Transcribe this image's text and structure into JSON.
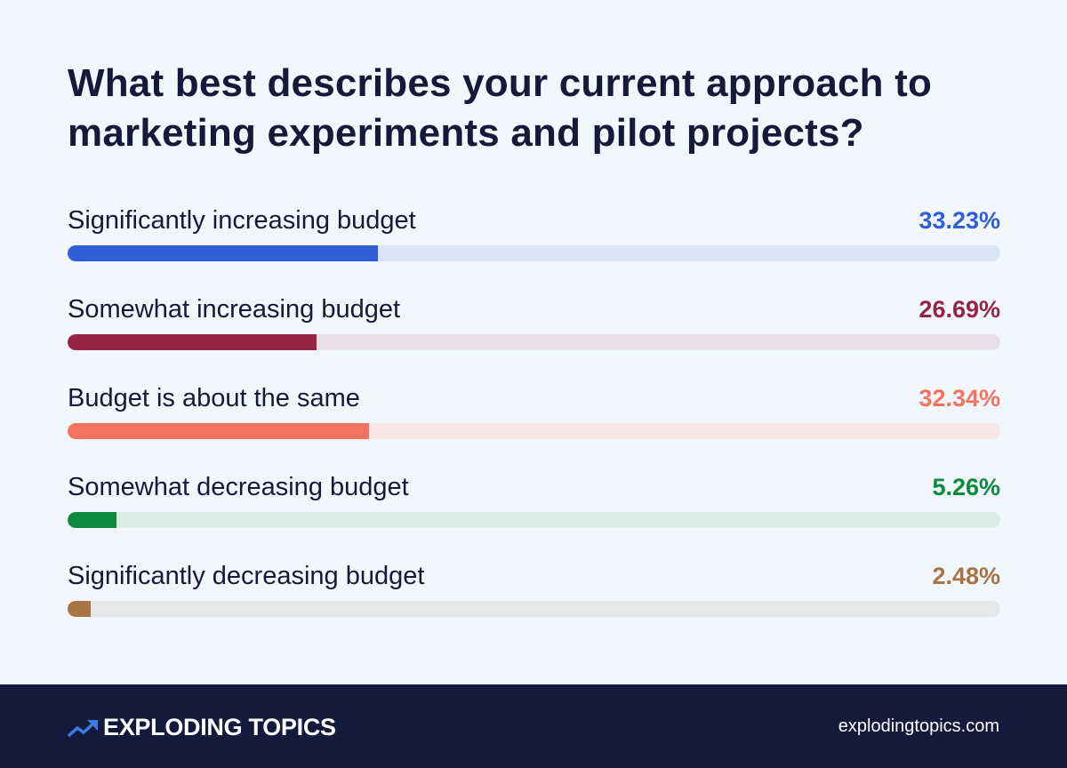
{
  "title": "What best describes your current approach to marketing experiments and pilot projects?",
  "rows": [
    {
      "label": "Significantly increasing budget",
      "value_text": "33.23%",
      "value": 33.23,
      "color": "#2f5ed8",
      "track": "#dbe5f8"
    },
    {
      "label": "Somewhat increasing budget",
      "value_text": "26.69%",
      "value": 26.69,
      "color": "#972447",
      "track": "#e8e0e6"
    },
    {
      "label": "Budget is about the same",
      "value_text": "32.34%",
      "value": 32.34,
      "color": "#f3735f",
      "track": "#f6e6e6"
    },
    {
      "label": "Somewhat decreasing budget",
      "value_text": "5.26%",
      "value": 5.26,
      "color": "#0c8b3d",
      "track": "#d9ece6"
    },
    {
      "label": "Significantly decreasing budget",
      "value_text": "2.48%",
      "value": 2.48,
      "color": "#a97443",
      "track": "#e6e7e9"
    }
  ],
  "footer": {
    "brand": "EXPLODING TOPICS",
    "logo_icon": "trending-up-arrow-icon",
    "url": "explodingtopics.com",
    "background": "#141a3b"
  },
  "chart_data": {
    "type": "bar",
    "orientation": "horizontal",
    "title": "What best describes your current approach to marketing experiments and pilot projects?",
    "categories": [
      "Significantly increasing budget",
      "Somewhat increasing budget",
      "Budget is about the same",
      "Somewhat decreasing budget",
      "Significantly decreasing budget"
    ],
    "values": [
      33.23,
      26.69,
      32.34,
      5.26,
      2.48
    ],
    "unit": "%",
    "colors": [
      "#2f5ed8",
      "#972447",
      "#f3735f",
      "#0c8b3d",
      "#a97443"
    ],
    "xlabel": "",
    "ylabel": "",
    "xlim": [
      0,
      100
    ],
    "grid": false,
    "legend": "none"
  }
}
